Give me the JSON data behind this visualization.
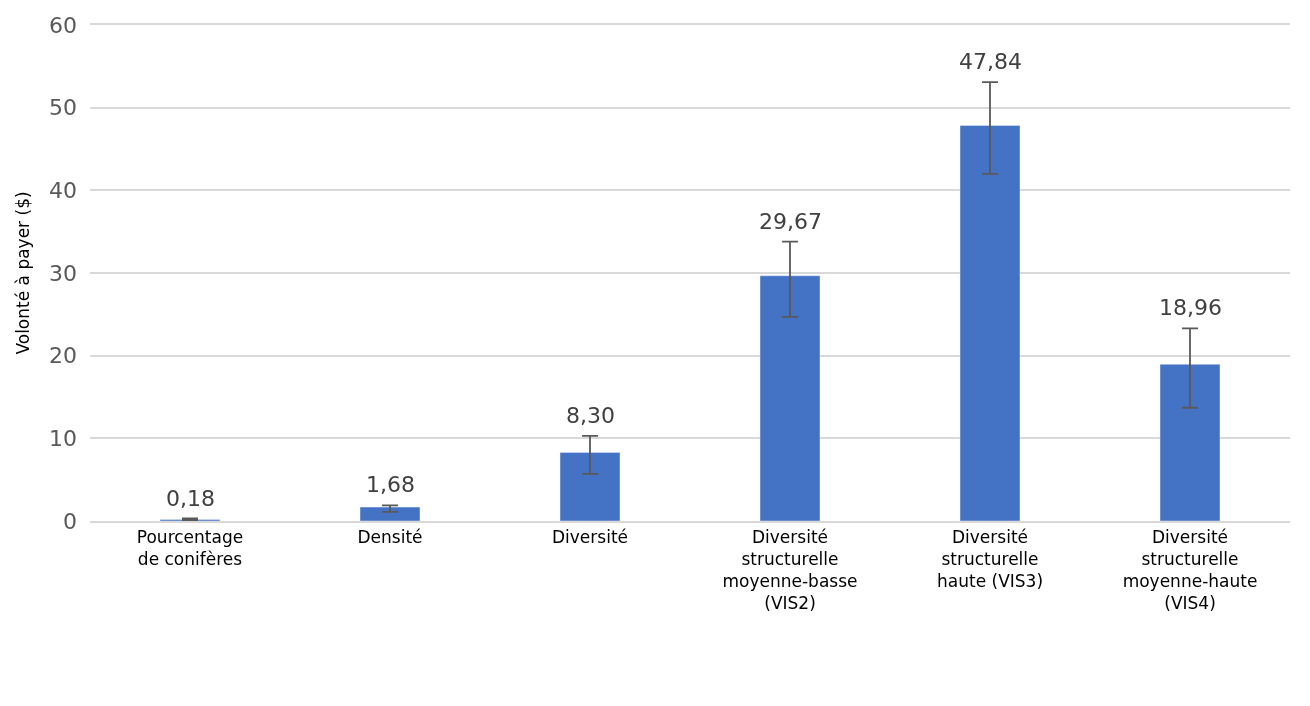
{
  "chart_data": {
    "type": "bar",
    "ylabel": "Volonté à payer ($)",
    "categories": [
      "Pourcentage de conifères",
      "Densité",
      "Diversité",
      "Diversité structurelle moyenne-basse (VIS2)",
      "Diversité structurelle haute (VIS3)",
      "Diversité structurelle moyenne-haute (VIS4)"
    ],
    "values": [
      0.18,
      1.68,
      8.3,
      29.67,
      47.84,
      18.96
    ],
    "value_labels": [
      "0,18",
      "1,68",
      "8,30",
      "29,67",
      "47,84",
      "18,96"
    ],
    "errors": [
      [
        0.1,
        0.3
      ],
      [
        1.1,
        1.9
      ],
      [
        5.7,
        10.3
      ],
      [
        24.7,
        33.8
      ],
      [
        42.0,
        53.1
      ],
      [
        13.7,
        23.3
      ]
    ],
    "color": "#4472c4",
    "ylim": [
      0,
      60
    ],
    "yticks": [
      0,
      10,
      20,
      30,
      40,
      50,
      60
    ],
    "grid": "y"
  }
}
